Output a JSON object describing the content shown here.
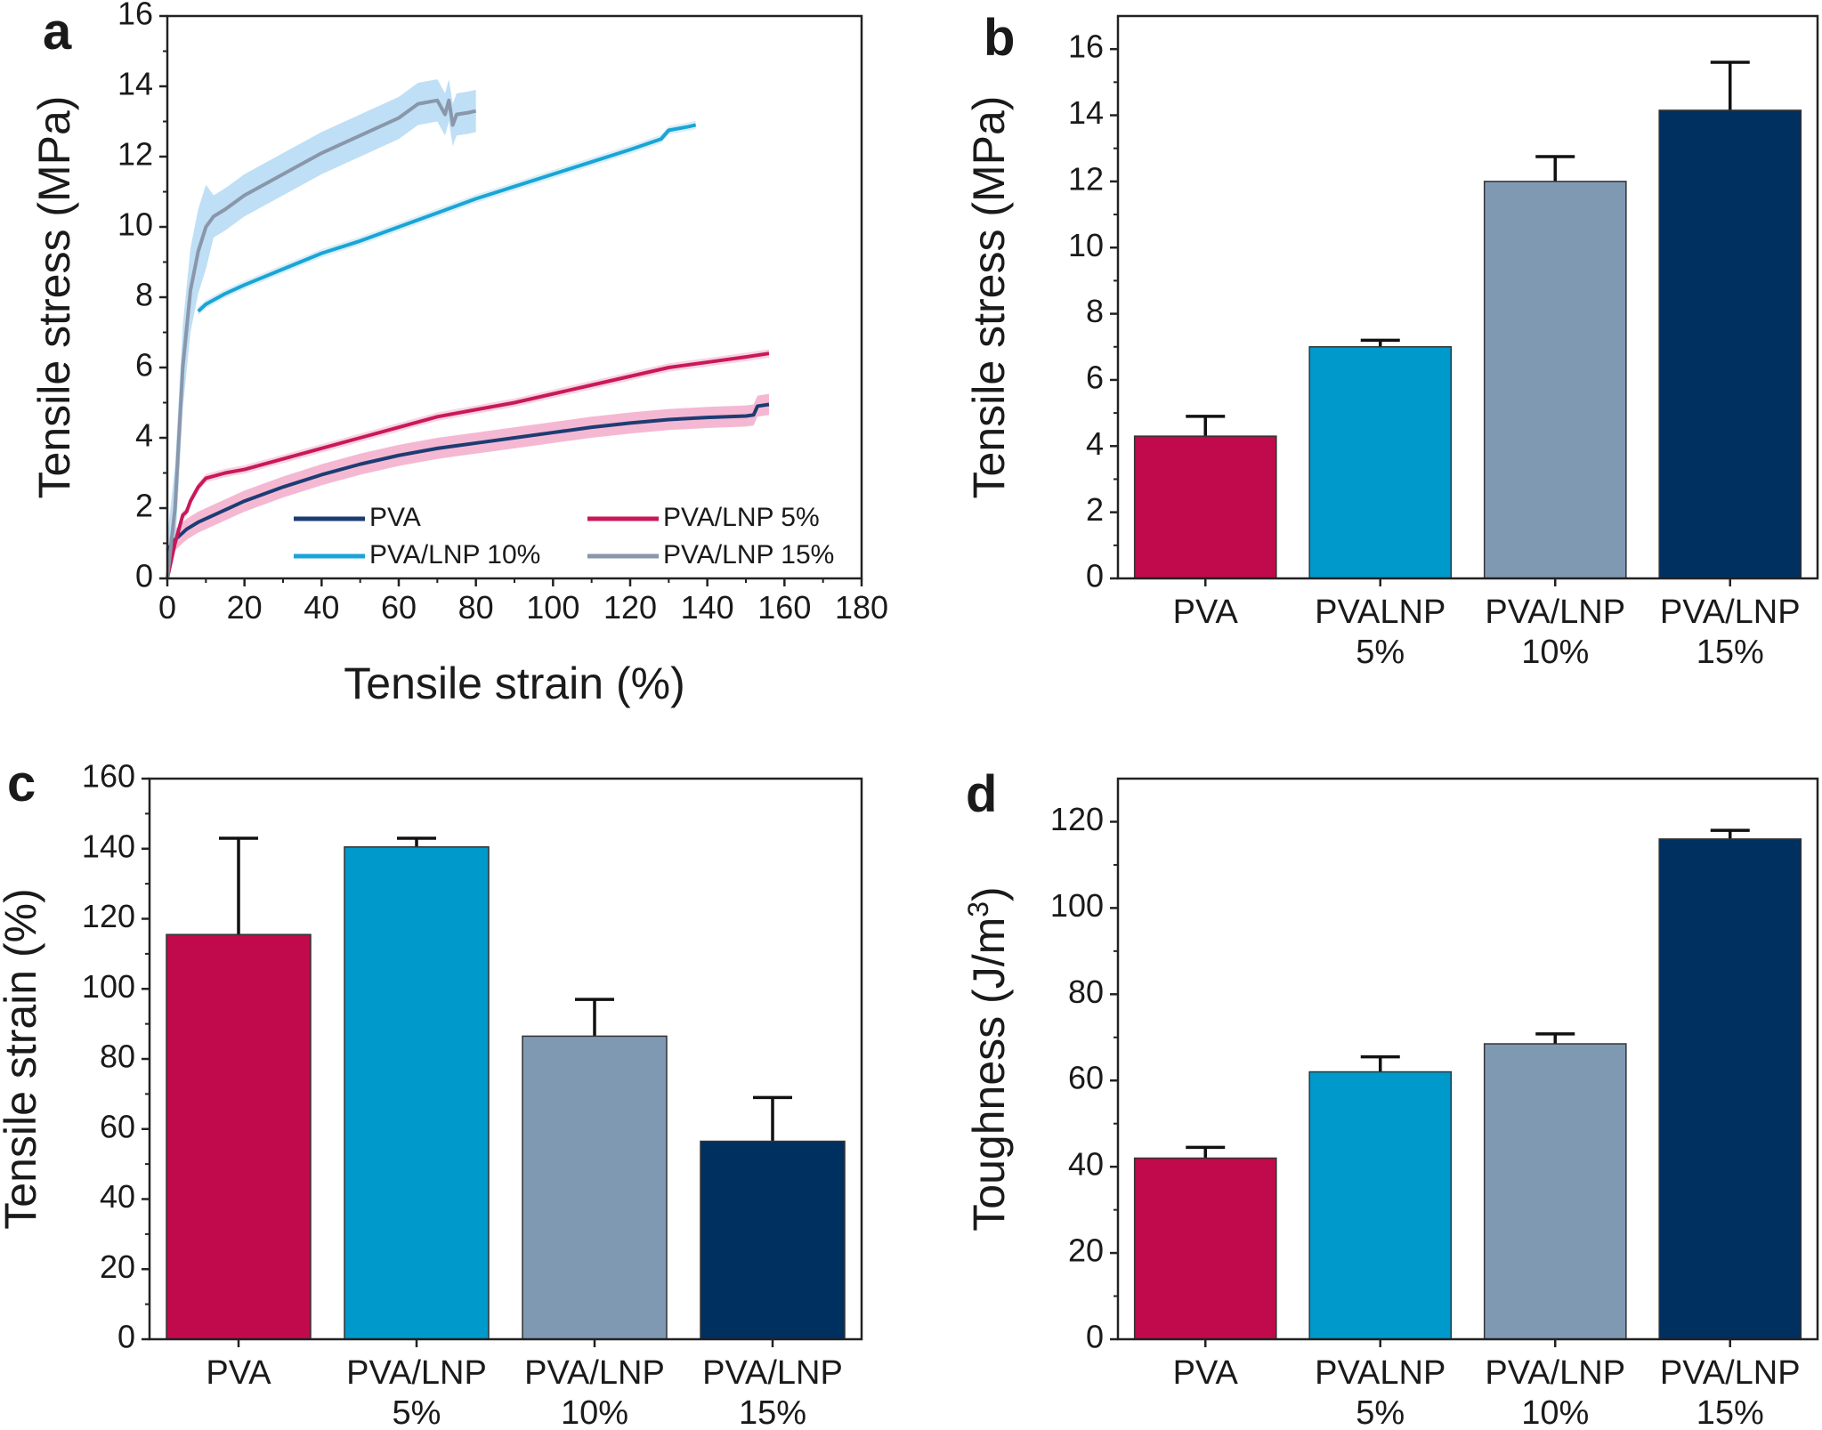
{
  "figure": {
    "panels": [
      "a",
      "b",
      "c",
      "d"
    ]
  },
  "colors": {
    "pva": "#c00a4b",
    "lnp5": "#0099cc",
    "lnp10": "#8099b3",
    "lnp15": "#003060",
    "line_pva": "#1d3c73",
    "line_lnp5": "#c8195a",
    "line_lnp10": "#19a5d6",
    "line_lnp15": "#8a96aa"
  },
  "chart_data": [
    {
      "panel": "a",
      "type": "line",
      "xlabel": "Tensile strain (%)",
      "ylabel": "Tensile stress (MPa)",
      "xlim": [
        0,
        180
      ],
      "ylim": [
        0,
        16
      ],
      "xticks": [
        0,
        20,
        40,
        60,
        80,
        100,
        120,
        140,
        160,
        180
      ],
      "yticks": [
        0,
        2,
        4,
        6,
        8,
        10,
        12,
        14,
        16
      ],
      "legend_position": "bottom-right",
      "series": [
        {
          "name": "PVA",
          "color": "#1d3c73",
          "band": "#f2a0c4",
          "x": [
            0,
            2,
            5,
            8,
            12,
            20,
            30,
            40,
            50,
            60,
            70,
            80,
            90,
            100,
            110,
            120,
            130,
            140,
            150,
            152,
            153,
            156
          ],
          "y": [
            0.8,
            1.1,
            1.4,
            1.6,
            1.8,
            2.2,
            2.6,
            2.95,
            3.25,
            3.5,
            3.7,
            3.85,
            4.0,
            4.15,
            4.3,
            4.42,
            4.52,
            4.58,
            4.62,
            4.65,
            4.9,
            4.95
          ]
        },
        {
          "name": "PVA/LNP 5%",
          "color": "#c8195a",
          "band": "#f6c4d8",
          "x": [
            0,
            2,
            4,
            5,
            6,
            8,
            10,
            15,
            20,
            30,
            40,
            50,
            60,
            70,
            80,
            90,
            100,
            110,
            120,
            130,
            140,
            150,
            156
          ],
          "y": [
            0,
            1.0,
            1.8,
            1.9,
            2.2,
            2.6,
            2.85,
            3.0,
            3.1,
            3.4,
            3.7,
            4.0,
            4.3,
            4.6,
            4.8,
            5.0,
            5.25,
            5.5,
            5.75,
            6.0,
            6.15,
            6.3,
            6.4
          ]
        },
        {
          "name": "PVA/LNP 10%",
          "color": "#19a5d6",
          "band": "#cde8f4",
          "x": [
            8,
            10,
            15,
            20,
            30,
            40,
            50,
            60,
            70,
            80,
            90,
            100,
            110,
            120,
            128,
            130,
            135,
            137
          ],
          "y": [
            7.6,
            7.8,
            8.1,
            8.35,
            8.8,
            9.25,
            9.6,
            10.0,
            10.4,
            10.8,
            11.15,
            11.5,
            11.85,
            12.2,
            12.5,
            12.75,
            12.85,
            12.9
          ]
        },
        {
          "name": "PVA/LNP 15%",
          "color": "#8a96aa",
          "band": "#a8d4f2",
          "x": [
            0,
            2,
            4,
            6,
            8,
            10,
            12,
            15,
            20,
            30,
            40,
            50,
            60,
            65,
            70,
            72,
            73,
            74,
            75,
            78,
            80
          ],
          "y": [
            0,
            2.0,
            6.0,
            8.2,
            9.3,
            10.0,
            10.3,
            10.5,
            10.9,
            11.5,
            12.1,
            12.6,
            13.1,
            13.5,
            13.6,
            13.2,
            13.6,
            12.9,
            13.2,
            13.25,
            13.3
          ]
        }
      ]
    },
    {
      "panel": "b",
      "type": "bar",
      "ylabel": "Tensile stress (MPa)",
      "ylim": [
        0,
        17
      ],
      "yticks": [
        0,
        2,
        4,
        6,
        8,
        10,
        12,
        14,
        16
      ],
      "categories": [
        [
          "PVA"
        ],
        [
          "PVALNP",
          "5%"
        ],
        [
          "PVA/LNP",
          "10%"
        ],
        [
          "PVA/LNP",
          "15%"
        ]
      ],
      "values": [
        4.3,
        7.0,
        12.0,
        14.15
      ],
      "errors": [
        0.6,
        0.2,
        0.75,
        1.45
      ]
    },
    {
      "panel": "c",
      "type": "bar",
      "ylabel": "Tensile strain (%)",
      "ylim": [
        0,
        160
      ],
      "yticks": [
        0,
        20,
        40,
        60,
        80,
        100,
        120,
        140,
        160
      ],
      "categories": [
        [
          "PVA"
        ],
        [
          "PVA/LNP",
          "5%"
        ],
        [
          "PVA/LNP",
          "10%"
        ],
        [
          "PVA/LNP",
          "15%"
        ]
      ],
      "values": [
        115.5,
        140.5,
        86.5,
        56.5
      ],
      "errors": [
        27.5,
        2.5,
        10.5,
        12.5
      ]
    },
    {
      "panel": "d",
      "type": "bar",
      "ylabel": "Toughness (J/m",
      "ylabel_sup": "3",
      "ylabel_end": ")",
      "ylim": [
        0,
        130
      ],
      "yticks": [
        0,
        20,
        40,
        60,
        80,
        100,
        120
      ],
      "categories": [
        [
          "PVA"
        ],
        [
          "PVALNP",
          "5%"
        ],
        [
          "PVA/LNP",
          "10%"
        ],
        [
          "PVA/LNP",
          "15%"
        ]
      ],
      "values": [
        42,
        62,
        68.5,
        116
      ],
      "errors": [
        2.5,
        3.5,
        2.3,
        2.0
      ]
    }
  ]
}
